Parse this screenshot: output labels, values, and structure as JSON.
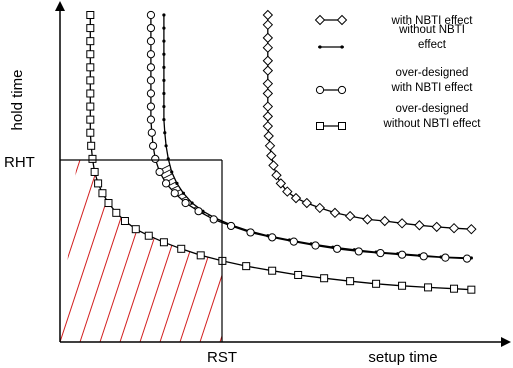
{
  "chart_data": {
    "type": "line",
    "title": "",
    "xlabel": "setup time",
    "ylabel": "hold time",
    "ticks": {
      "x": "RST",
      "y": "RHT"
    },
    "xlim": [
      0,
      10
    ],
    "ylim": [
      0,
      10
    ],
    "grid": false,
    "legend_position": "top-right",
    "series": [
      {
        "name": "with NBTI effect",
        "marker": "diamond",
        "points": [
          [
            4.8,
            10
          ],
          [
            4.8,
            9.7
          ],
          [
            4.8,
            9.3
          ],
          [
            4.8,
            9.0
          ],
          [
            4.8,
            8.6
          ],
          [
            4.8,
            8.3
          ],
          [
            4.8,
            7.9
          ],
          [
            4.8,
            7.6
          ],
          [
            4.8,
            7.2
          ],
          [
            4.8,
            6.9
          ],
          [
            4.8,
            6.6
          ],
          [
            4.82,
            6.3
          ],
          [
            4.85,
            6.0
          ],
          [
            4.88,
            5.7
          ],
          [
            4.93,
            5.4
          ],
          [
            5.0,
            5.1
          ],
          [
            5.1,
            4.85
          ],
          [
            5.25,
            4.6
          ],
          [
            5.45,
            4.4
          ],
          [
            5.7,
            4.25
          ],
          [
            6.0,
            4.1
          ],
          [
            6.35,
            3.95
          ],
          [
            6.7,
            3.85
          ],
          [
            7.1,
            3.75
          ],
          [
            7.5,
            3.7
          ],
          [
            7.9,
            3.63
          ],
          [
            8.3,
            3.57
          ],
          [
            8.7,
            3.52
          ],
          [
            9.1,
            3.48
          ],
          [
            9.5,
            3.45
          ]
        ]
      },
      {
        "name": "without NBTI effect",
        "marker": "dot",
        "points": [
          [
            2.4,
            10
          ],
          [
            2.4,
            9.6
          ],
          [
            2.4,
            9.2
          ],
          [
            2.4,
            8.8
          ],
          [
            2.4,
            8.4
          ],
          [
            2.4,
            8.0
          ],
          [
            2.4,
            7.6
          ],
          [
            2.4,
            7.2
          ],
          [
            2.4,
            6.8
          ],
          [
            2.42,
            6.4
          ],
          [
            2.45,
            6.0
          ],
          [
            2.5,
            5.6
          ],
          [
            2.58,
            5.2
          ],
          [
            2.7,
            4.85
          ],
          [
            2.85,
            4.55
          ],
          [
            3.05,
            4.25
          ],
          [
            3.3,
            4.0
          ],
          [
            3.6,
            3.78
          ],
          [
            3.95,
            3.58
          ],
          [
            4.35,
            3.4
          ],
          [
            4.8,
            3.25
          ],
          [
            5.3,
            3.12
          ],
          [
            5.8,
            3.0
          ],
          [
            6.3,
            2.9
          ],
          [
            6.8,
            2.82
          ],
          [
            7.3,
            2.75
          ],
          [
            7.8,
            2.7
          ],
          [
            8.3,
            2.65
          ],
          [
            8.8,
            2.6
          ],
          [
            9.5,
            2.57
          ]
        ]
      },
      {
        "name": "over-designed with NBTI effect",
        "marker": "circle",
        "points": [
          [
            2.1,
            10
          ],
          [
            2.1,
            9.6
          ],
          [
            2.1,
            9.2
          ],
          [
            2.1,
            8.8
          ],
          [
            2.1,
            8.4
          ],
          [
            2.1,
            8.0
          ],
          [
            2.1,
            7.6
          ],
          [
            2.1,
            7.2
          ],
          [
            2.1,
            6.8
          ],
          [
            2.12,
            6.4
          ],
          [
            2.15,
            6.0
          ],
          [
            2.2,
            5.6
          ],
          [
            2.3,
            5.2
          ],
          [
            2.45,
            4.85
          ],
          [
            2.65,
            4.55
          ],
          [
            2.9,
            4.25
          ],
          [
            3.2,
            4.0
          ],
          [
            3.55,
            3.75
          ],
          [
            3.95,
            3.55
          ],
          [
            4.4,
            3.35
          ],
          [
            4.9,
            3.2
          ],
          [
            5.4,
            3.07
          ],
          [
            5.9,
            2.95
          ],
          [
            6.4,
            2.85
          ],
          [
            6.9,
            2.77
          ],
          [
            7.4,
            2.72
          ],
          [
            7.9,
            2.67
          ],
          [
            8.4,
            2.62
          ],
          [
            8.9,
            2.58
          ],
          [
            9.4,
            2.55
          ]
        ]
      },
      {
        "name": "over-designed without NBTI effect",
        "marker": "square",
        "points": [
          [
            0.7,
            10
          ],
          [
            0.7,
            9.6
          ],
          [
            0.7,
            9.2
          ],
          [
            0.7,
            8.8
          ],
          [
            0.7,
            8.4
          ],
          [
            0.7,
            8.0
          ],
          [
            0.7,
            7.6
          ],
          [
            0.7,
            7.2
          ],
          [
            0.7,
            6.8
          ],
          [
            0.7,
            6.4
          ],
          [
            0.72,
            6.0
          ],
          [
            0.75,
            5.6
          ],
          [
            0.8,
            5.2
          ],
          [
            0.88,
            4.85
          ],
          [
            0.98,
            4.55
          ],
          [
            1.12,
            4.25
          ],
          [
            1.3,
            3.95
          ],
          [
            1.5,
            3.7
          ],
          [
            1.75,
            3.45
          ],
          [
            2.05,
            3.25
          ],
          [
            2.4,
            3.05
          ],
          [
            2.8,
            2.85
          ],
          [
            3.25,
            2.65
          ],
          [
            3.75,
            2.48
          ],
          [
            4.3,
            2.32
          ],
          [
            4.9,
            2.18
          ],
          [
            5.5,
            2.05
          ],
          [
            6.1,
            1.95
          ],
          [
            6.7,
            1.86
          ],
          [
            7.3,
            1.78
          ],
          [
            7.9,
            1.72
          ],
          [
            8.5,
            1.67
          ],
          [
            9.1,
            1.63
          ],
          [
            9.5,
            1.6
          ]
        ]
      }
    ]
  }
}
